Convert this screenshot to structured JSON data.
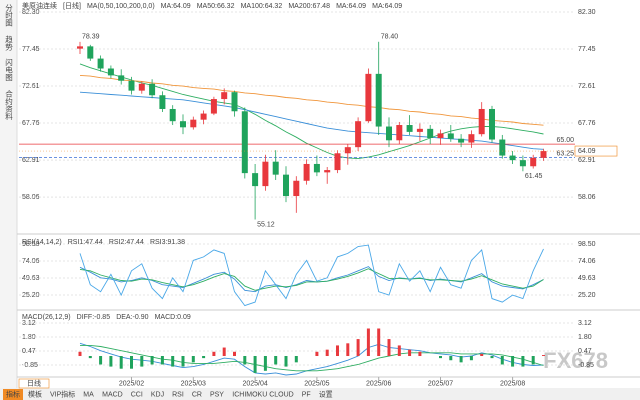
{
  "sidebar": [
    "分时图",
    "趋势",
    "闪电图",
    "合约资料"
  ],
  "period_button": "日线",
  "toolbar": [
    "指标",
    "模板",
    "VIP指标",
    "MA",
    "MACD",
    "CCI",
    "KDJ",
    "RSI",
    "CR",
    "PSY",
    "ICHIMOKU CLOUD",
    "PF",
    "设置"
  ],
  "watermark": "FX678",
  "chart_data": [
    {
      "type": "candlestick",
      "title": "美原油连续",
      "period": "[日线]",
      "indicator": "MA(0,50,100,200,0,0)",
      "up_color": "#e8383d",
      "down_color": "#1fa35c",
      "categories": [
        null,
        null,
        null,
        null,
        null,
        null,
        null,
        null,
        null,
        null,
        null,
        null,
        null,
        null,
        null,
        null,
        null,
        null,
        null,
        null,
        null,
        null,
        null,
        null,
        null,
        null,
        null,
        null,
        null,
        null,
        null,
        null,
        null,
        null,
        null,
        null,
        null,
        null,
        null,
        null,
        null,
        null,
        null,
        null,
        null,
        null
      ],
      "xticks": [
        {
          "value": 5,
          "label": "2025/02"
        },
        {
          "value": 11,
          "label": "2025/03"
        },
        {
          "value": 17,
          "label": "2025/04"
        },
        {
          "value": 23,
          "label": "2025/05"
        },
        {
          "value": 29,
          "label": "2025/06"
        },
        {
          "value": 35,
          "label": "2025/07"
        },
        {
          "value": 42,
          "label": "2025/08"
        }
      ],
      "open": [
        77.5,
        77.8,
        76.2,
        74.9,
        74.0,
        73.3,
        72.0,
        72.9,
        71.4,
        69.6,
        68.0,
        67.2,
        68.2,
        69.0,
        70.9,
        71.8,
        69.3,
        61.2,
        59.5,
        62.7,
        61.0,
        58.2,
        60.2,
        62.4,
        61.3,
        61.6,
        63.8,
        64.6,
        68.0,
        74.2,
        67.3,
        65.5,
        67.5,
        66.6,
        67.0,
        65.8,
        66.4,
        65.7,
        65.2,
        66.3,
        69.6,
        65.6,
        63.5,
        62.9,
        62.1,
        63.2
      ],
      "high": [
        78.39,
        78.0,
        76.6,
        75.3,
        74.8,
        73.8,
        73.2,
        73.5,
        71.9,
        70.1,
        68.9,
        68.6,
        69.4,
        71.2,
        72.3,
        72.0,
        69.8,
        62.4,
        63.6,
        64.2,
        62.1,
        60.8,
        63.0,
        63.5,
        62.0,
        64.2,
        65.0,
        68.5,
        74.9,
        78.4,
        68.5,
        67.9,
        68.8,
        67.7,
        67.5,
        66.9,
        67.5,
        66.3,
        66.8,
        70.5,
        70.0,
        66.2,
        64.1,
        63.5,
        63.6,
        64.4
      ],
      "low": [
        76.8,
        75.9,
        74.5,
        73.6,
        72.8,
        71.5,
        71.6,
        71.0,
        69.2,
        67.5,
        66.3,
        66.9,
        67.6,
        68.8,
        70.2,
        68.6,
        60.5,
        55.12,
        58.9,
        60.3,
        57.4,
        56.0,
        59.7,
        60.8,
        59.8,
        61.2,
        62.3,
        64.1,
        67.8,
        66.2,
        64.6,
        65.0,
        66.2,
        65.4,
        65.0,
        64.9,
        65.3,
        64.6,
        64.5,
        66.0,
        65.2,
        63.1,
        62.4,
        61.45,
        61.8,
        62.8
      ],
      "close": [
        77.8,
        76.2,
        74.9,
        74.0,
        73.3,
        72.0,
        72.9,
        71.4,
        69.6,
        68.0,
        67.2,
        68.2,
        69.0,
        70.9,
        71.8,
        69.3,
        61.2,
        59.5,
        62.7,
        61.0,
        58.2,
        60.2,
        62.4,
        61.3,
        61.6,
        63.8,
        64.6,
        68.0,
        74.2,
        67.3,
        65.5,
        67.5,
        66.6,
        67.0,
        65.8,
        66.4,
        65.7,
        65.2,
        66.3,
        69.6,
        65.6,
        63.5,
        62.9,
        62.1,
        63.2,
        64.09
      ],
      "series": [
        {
          "name": "MA:64.09",
          "color": "#c040c0"
        },
        {
          "name": "MA50:66.32",
          "color": "#2fae62",
          "values": [
            75.5,
            75.0,
            74.6,
            74.2,
            73.8,
            73.4,
            73.0,
            72.7,
            72.3,
            71.9,
            71.5,
            71.2,
            70.9,
            70.6,
            70.4,
            70.2,
            69.6,
            68.9,
            68.1,
            67.4,
            66.6,
            65.9,
            65.1,
            64.5,
            63.9,
            63.4,
            63.2,
            63.1,
            63.3,
            63.6,
            64.0,
            64.4,
            64.8,
            65.3,
            65.8,
            66.3,
            66.7,
            67.0,
            67.2,
            67.3,
            67.3,
            67.2,
            67.0,
            66.8,
            66.6,
            66.32
          ]
        },
        {
          "name": "MA100:64.32",
          "color": "#3a8fd8",
          "values": [
            71.8,
            71.7,
            71.6,
            71.5,
            71.4,
            71.3,
            71.2,
            71.1,
            71.0,
            70.9,
            70.8,
            70.6,
            70.4,
            70.2,
            70.0,
            69.8,
            69.5,
            69.2,
            68.9,
            68.6,
            68.3,
            68.0,
            67.7,
            67.4,
            67.1,
            66.9,
            66.7,
            66.6,
            66.5,
            66.4,
            66.3,
            66.2,
            66.1,
            66.0,
            65.9,
            65.8,
            65.7,
            65.6,
            65.5,
            65.4,
            65.2,
            65.0,
            64.8,
            64.6,
            64.4,
            64.32
          ]
        },
        {
          "name": "MA200:67.48",
          "color": "#f0953a",
          "values": [
            74.0,
            73.9,
            73.7,
            73.6,
            73.4,
            73.3,
            73.2,
            73.0,
            72.9,
            72.7,
            72.6,
            72.4,
            72.3,
            72.2,
            72.0,
            71.9,
            71.7,
            71.6,
            71.4,
            71.3,
            71.1,
            71.0,
            70.8,
            70.7,
            70.5,
            70.4,
            70.2,
            70.1,
            69.9,
            69.8,
            69.6,
            69.5,
            69.3,
            69.2,
            69.0,
            68.9,
            68.7,
            68.6,
            68.4,
            68.3,
            68.1,
            68.0,
            67.9,
            67.7,
            67.6,
            67.48
          ]
        },
        {
          "name": "MA:64.09",
          "color": "#e070c8"
        },
        {
          "name": "MA:64.09",
          "color": "#9a78e0"
        }
      ],
      "annotations": [
        {
          "value": 78.39,
          "label": "78.39"
        },
        {
          "value": 78.4,
          "label": "78.40"
        },
        {
          "value": 55.12,
          "label": "55.12"
        },
        {
          "value": 61.45,
          "label": "61.45"
        }
      ],
      "levels": [
        {
          "value": 65,
          "label": "65.00",
          "color": "#e8383d",
          "dashed": false
        },
        {
          "value": 63.25,
          "label": "63.25",
          "color": "#3a6fd8",
          "dashed": true
        }
      ],
      "last_price": {
        "value": 64.09,
        "label": "64.09",
        "color": "#f0953a"
      },
      "ylim": [
        53.49,
        82.3
      ],
      "yticks": [
        {
          "value": 82.3,
          "label": "82.30"
        },
        77.45,
        72.61,
        67.76,
        62.91,
        58.06
      ],
      "grid": true
    },
    {
      "type": "line",
      "title": "RSI(14,14,2)",
      "series": [
        {
          "name": "RSI1:47.44",
          "color": "#3a8fd8",
          "values": [
            65,
            58,
            50,
            48,
            44,
            46,
            50,
            46,
            40,
            38,
            36,
            42,
            48,
            55,
            58,
            48,
            32,
            30,
            38,
            40,
            36,
            40,
            46,
            44,
            45,
            50,
            54,
            60,
            66,
            52,
            46,
            50,
            48,
            50,
            46,
            48,
            46,
            44,
            50,
            56,
            44,
            38,
            36,
            34,
            40,
            47.44
          ]
        },
        {
          "name": "RSI2:47.44",
          "color": "#2fae62",
          "values": [
            62,
            60,
            54,
            50,
            46,
            45,
            48,
            47,
            43,
            40,
            37,
            40,
            45,
            51,
            56,
            52,
            38,
            32,
            35,
            38,
            37,
            39,
            44,
            44,
            45,
            48,
            52,
            57,
            63,
            56,
            49,
            49,
            48,
            49,
            47,
            47,
            46,
            45,
            48,
            53,
            47,
            41,
            38,
            35,
            38,
            47.44
          ]
        },
        {
          "name": "RSI3:91.38",
          "color": "#4aa8e8",
          "values": [
            85,
            40,
            30,
            55,
            25,
            60,
            70,
            35,
            20,
            50,
            30,
            75,
            80,
            90,
            85,
            30,
            10,
            15,
            60,
            40,
            20,
            55,
            75,
            45,
            50,
            80,
            85,
            95,
            97,
            30,
            25,
            70,
            45,
            60,
            30,
            65,
            40,
            35,
            75,
            90,
            20,
            15,
            25,
            20,
            60,
            91.38
          ]
        }
      ],
      "ylim": [
        6.5,
        108.6
      ],
      "yticks": [
        {
          "value": 98.5,
          "label": "98.50"
        },
        74.06,
        49.63,
        {
          "value": 25.2,
          "label": "25.20"
        }
      ],
      "grid": true
    },
    {
      "type": "macd",
      "title": "MACD(26,12,9)",
      "series": [
        {
          "name": "DIFF:-0.85",
          "color": "#3a8fd8",
          "values": [
            1.2,
            0.9,
            0.5,
            0.2,
            -0.1,
            -0.3,
            -0.4,
            -0.5,
            -0.7,
            -0.9,
            -1.1,
            -1.0,
            -0.8,
            -0.5,
            -0.2,
            -0.3,
            -1.0,
            -1.6,
            -1.7,
            -1.6,
            -1.8,
            -1.7,
            -1.4,
            -1.2,
            -1.0,
            -0.7,
            -0.4,
            0.0,
            0.8,
            1.1,
            0.8,
            0.7,
            0.6,
            0.5,
            0.3,
            0.2,
            0.1,
            -0.1,
            0.0,
            0.3,
            0.1,
            -0.3,
            -0.6,
            -0.8,
            -0.9,
            -0.85
          ]
        },
        {
          "name": "DEA:-0.90",
          "color": "#2fae62",
          "values": [
            1.0,
            1.0,
            0.9,
            0.7,
            0.5,
            0.3,
            0.1,
            -0.1,
            -0.3,
            -0.4,
            -0.6,
            -0.7,
            -0.7,
            -0.7,
            -0.6,
            -0.5,
            -0.6,
            -0.8,
            -1.0,
            -1.2,
            -1.3,
            -1.4,
            -1.4,
            -1.4,
            -1.3,
            -1.2,
            -1.0,
            -0.8,
            -0.5,
            -0.2,
            0.0,
            0.2,
            0.3,
            0.3,
            0.3,
            0.3,
            0.3,
            0.2,
            0.2,
            0.2,
            0.2,
            0.1,
            -0.1,
            -0.3,
            -0.6,
            -0.9
          ]
        },
        {
          "name": "MACD:0.09",
          "color": "#a050c0",
          "kind": "bar",
          "up_color": "#e8383d",
          "down_color": "#1fa35c",
          "values": [
            0.4,
            -0.2,
            -0.8,
            -1.0,
            -1.2,
            -1.2,
            -1.0,
            -0.8,
            -0.8,
            -1.0,
            -1.0,
            -0.6,
            -0.2,
            0.4,
            0.8,
            0.4,
            -0.8,
            -1.6,
            -1.4,
            -0.8,
            -1.0,
            -0.6,
            0.0,
            0.4,
            0.6,
            1.0,
            1.2,
            1.6,
            2.6,
            2.6,
            1.6,
            1.0,
            0.6,
            0.4,
            0.0,
            -0.2,
            -0.4,
            -0.6,
            -0.4,
            0.2,
            -0.2,
            -0.8,
            -1.0,
            -1.0,
            -0.8,
            0.09
          ]
        }
      ],
      "ylim": [
        -1.89,
        4.16
      ],
      "yticks": [
        3.12,
        {
          "value": 1.8,
          "label": "1.80"
        },
        0.47,
        -0.85
      ],
      "grid": true
    }
  ]
}
